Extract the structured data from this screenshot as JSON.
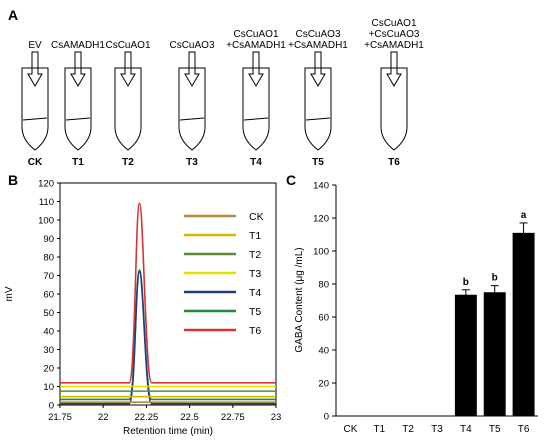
{
  "panel_a": {
    "letter": "A",
    "tubes": [
      {
        "top": [
          "EV"
        ],
        "bottom": "CK",
        "has_liquid": true
      },
      {
        "top": [
          "CsAMADH1"
        ],
        "bottom": "T1",
        "has_liquid": true
      },
      {
        "top": [
          "CsCuAO1"
        ],
        "bottom": "T2",
        "has_liquid": false
      },
      {
        "top": [
          "CsCuAO3"
        ],
        "bottom": "T3",
        "has_liquid": true
      },
      {
        "top": [
          "CsCuAO1",
          "+CsAMADH1"
        ],
        "bottom": "T4",
        "has_liquid": true
      },
      {
        "top": [
          "CsCuAO3",
          "+CsAMADH1"
        ],
        "bottom": "T5",
        "has_liquid": true
      },
      {
        "top": [
          "CsCuAO1",
          "+CsCuAO3",
          "+CsAMADH1"
        ],
        "bottom": "T6",
        "has_liquid": false
      }
    ]
  },
  "chart_data": [
    {
      "panel": "B",
      "type": "line",
      "title": "",
      "xlabel": "Retention time (min)",
      "ylabel": "mV",
      "xlim": [
        21.75,
        23
      ],
      "ylim": [
        0,
        120
      ],
      "xticks": [
        "21.75",
        "22",
        "22.25",
        "22.5",
        "22.75",
        "23"
      ],
      "yticks": [
        "0",
        "10",
        "20",
        "30",
        "40",
        "50",
        "60",
        "70",
        "80",
        "90",
        "100",
        "110",
        "120"
      ],
      "legend_position": "right",
      "grid": false,
      "peak_range": [
        22.15,
        22.28
      ],
      "series": [
        {
          "name": "CK",
          "color": "#b58a3c",
          "baseline": 1.5,
          "peak_time": 22.21,
          "peak_height": 1.5
        },
        {
          "name": "T1",
          "color": "#d4b800",
          "baseline": 4.5,
          "peak_time": 22.21,
          "peak_height": 4.5
        },
        {
          "name": "T2",
          "color": "#5a8a3a",
          "baseline": 7.5,
          "peak_time": 22.21,
          "peak_height": 7.5
        },
        {
          "name": "T3",
          "color": "#e6e000",
          "baseline": 10,
          "peak_time": 22.21,
          "peak_height": 10
        },
        {
          "name": "T4",
          "color": "#1f3c88",
          "baseline": 0.8,
          "peak_time": 22.21,
          "peak_height": 72
        },
        {
          "name": "T5",
          "color": "#1f8a3a",
          "baseline": 3,
          "peak_time": 22.21,
          "peak_height": 73
        },
        {
          "name": "T6",
          "color": "#d93232",
          "baseline": 12,
          "peak_time": 22.21,
          "peak_height": 109
        }
      ]
    },
    {
      "panel": "C",
      "type": "bar",
      "title": "",
      "xlabel": "",
      "ylabel": "GABA Content (μg /mL)",
      "ylim": [
        0,
        140
      ],
      "yticks": [
        "0",
        "20",
        "40",
        "60",
        "80",
        "100",
        "120",
        "140"
      ],
      "categories": [
        "CK",
        "T1",
        "T2",
        "T3",
        "T4",
        "T5",
        "T6"
      ],
      "values": [
        0,
        0,
        0,
        0,
        73.5,
        75,
        111
      ],
      "errors": [
        0,
        0,
        0,
        0,
        3,
        4,
        6
      ],
      "significance": [
        "",
        "",
        "",
        "",
        "b",
        "b",
        "a"
      ],
      "bar_color": "#000000"
    }
  ],
  "panel_letters": {
    "b": "B",
    "c": "C"
  }
}
